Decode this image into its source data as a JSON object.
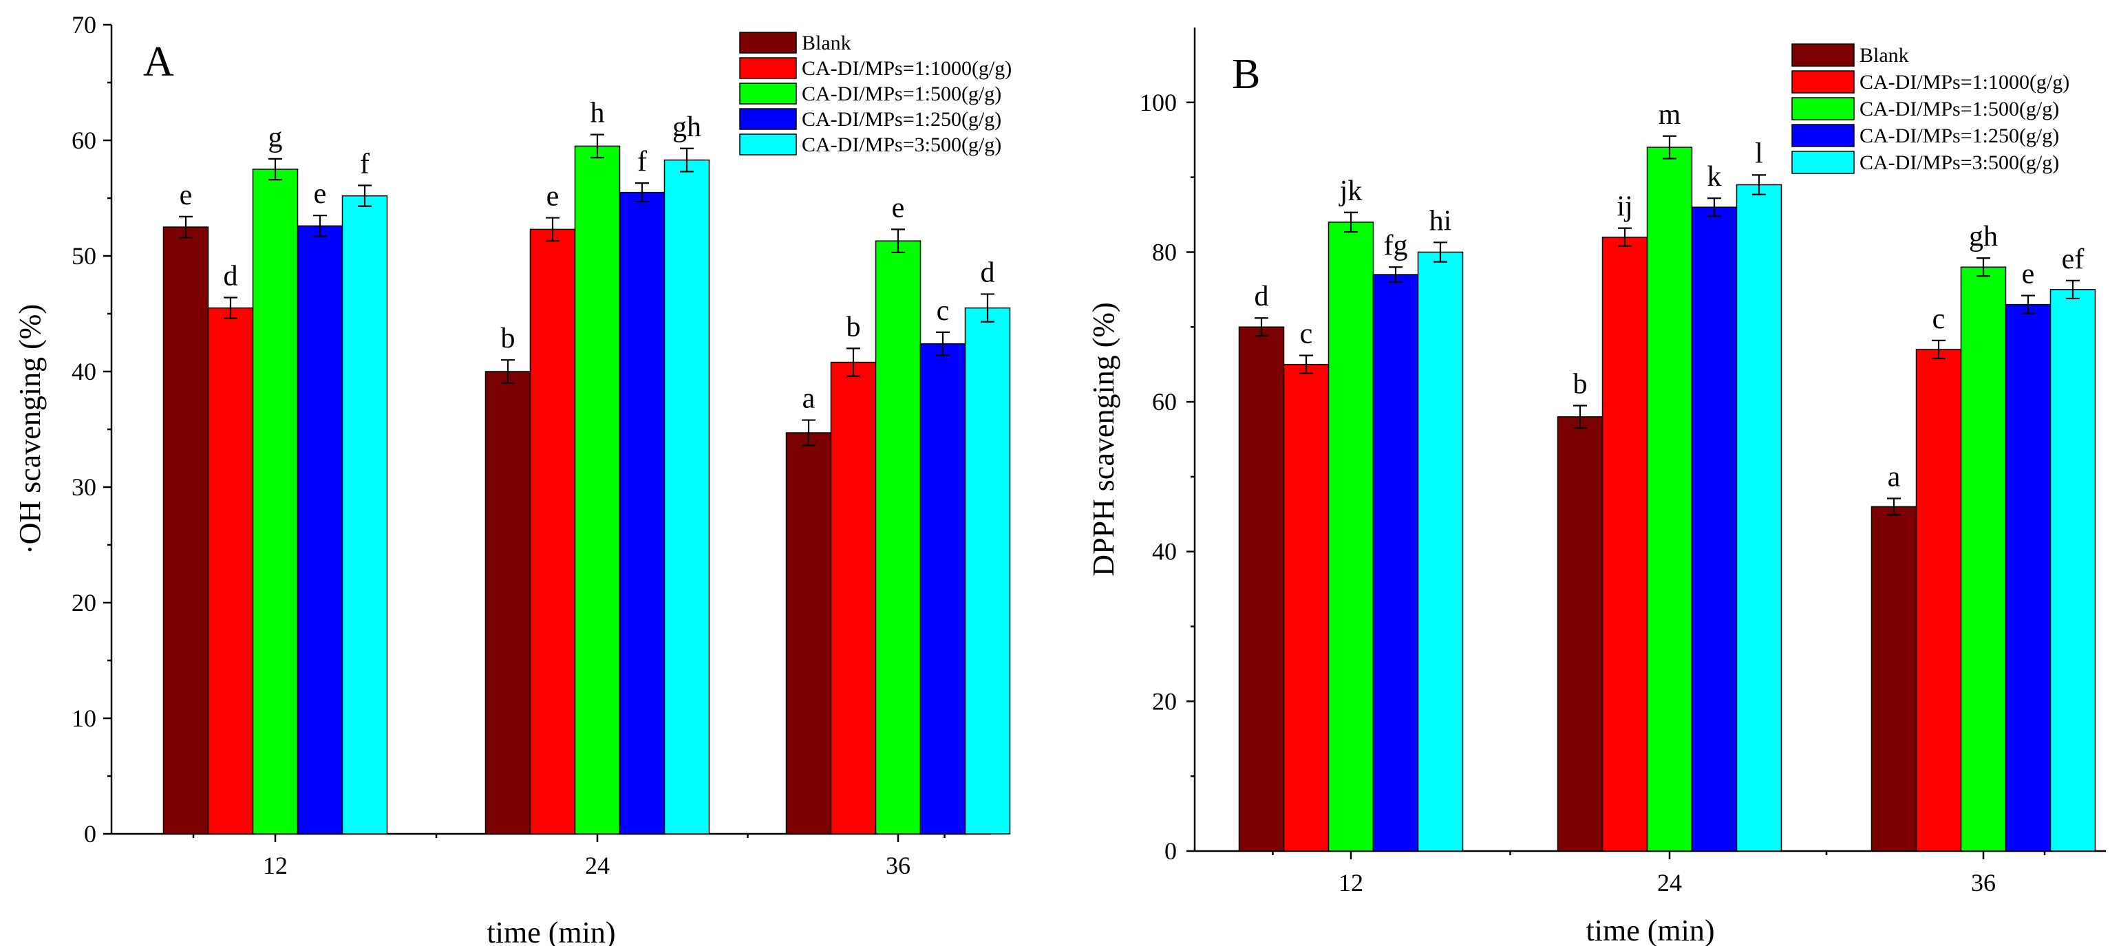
{
  "chart_data": [
    {
      "type": "bar",
      "panel_label": "A",
      "xlabel": "time (min)",
      "ylabel": "·OH scavenging (%)",
      "ylim": [
        0,
        70
      ],
      "yticks": [
        0,
        10,
        20,
        30,
        40,
        50,
        60,
        70
      ],
      "categories": [
        "12",
        "24",
        "36"
      ],
      "legend_position": "top-right",
      "series": [
        {
          "name": "Blank",
          "color": "#7b0000",
          "values": [
            52.5,
            40.0,
            34.7
          ],
          "errors": [
            0.9,
            1.0,
            1.1
          ],
          "letters": [
            "e",
            "b",
            "a"
          ]
        },
        {
          "name": "CA-DI/MPs=1:1000(g/g)",
          "color": "#ff0000",
          "values": [
            45.5,
            52.3,
            40.8
          ],
          "errors": [
            0.9,
            1.0,
            1.2
          ],
          "letters": [
            "d",
            "e",
            "b"
          ]
        },
        {
          "name": "CA-DI/MPs=1:500(g/g)",
          "color": "#00ff00",
          "values": [
            57.5,
            59.5,
            51.3
          ],
          "errors": [
            0.9,
            1.0,
            1.0
          ],
          "letters": [
            "g",
            "h",
            "e"
          ]
        },
        {
          "name": "CA-DI/MPs=1:250(g/g)",
          "color": "#0000ff",
          "values": [
            52.6,
            55.5,
            42.4
          ],
          "errors": [
            0.9,
            0.8,
            1.0
          ],
          "letters": [
            "e",
            "f",
            "c"
          ]
        },
        {
          "name": "CA-DI/MPs=3:500(g/g)",
          "color": "#00ffff",
          "values": [
            55.2,
            58.3,
            45.5
          ],
          "errors": [
            0.9,
            1.0,
            1.2
          ],
          "letters": [
            "f",
            "gh",
            "d"
          ]
        }
      ]
    },
    {
      "type": "bar",
      "panel_label": "B",
      "xlabel": "time (min)",
      "ylabel": "DPPH scavenging (%)",
      "ylim": [
        0,
        110
      ],
      "yticks": [
        0,
        20,
        40,
        60,
        80,
        100
      ],
      "categories": [
        "12",
        "24",
        "36"
      ],
      "legend_position": "top-right",
      "series": [
        {
          "name": "Blank",
          "color": "#7b0000",
          "values": [
            70.0,
            58.0,
            46.0
          ],
          "errors": [
            1.2,
            1.5,
            1.1
          ],
          "letters": [
            "d",
            "b",
            "a"
          ]
        },
        {
          "name": "CA-DI/MPs=1:1000(g/g)",
          "color": "#ff0000",
          "values": [
            65.0,
            82.0,
            67.0
          ],
          "errors": [
            1.2,
            1.2,
            1.2
          ],
          "letters": [
            "c",
            "ij",
            "c"
          ]
        },
        {
          "name": "CA-DI/MPs=1:500(g/g)",
          "color": "#00ff00",
          "values": [
            84.0,
            94.0,
            78.0
          ],
          "errors": [
            1.3,
            1.5,
            1.2
          ],
          "letters": [
            "jk",
            "m",
            "gh"
          ]
        },
        {
          "name": "CA-DI/MPs=1:250(g/g)",
          "color": "#0000ff",
          "values": [
            77.0,
            86.0,
            73.0
          ],
          "errors": [
            1.0,
            1.2,
            1.2
          ],
          "letters": [
            "fg",
            "k",
            "e"
          ]
        },
        {
          "name": "CA-DI/MPs=3:500(g/g)",
          "color": "#00ffff",
          "values": [
            80.0,
            89.0,
            75.0
          ],
          "errors": [
            1.3,
            1.3,
            1.2
          ],
          "letters": [
            "hi",
            "l",
            "ef"
          ]
        }
      ]
    }
  ]
}
